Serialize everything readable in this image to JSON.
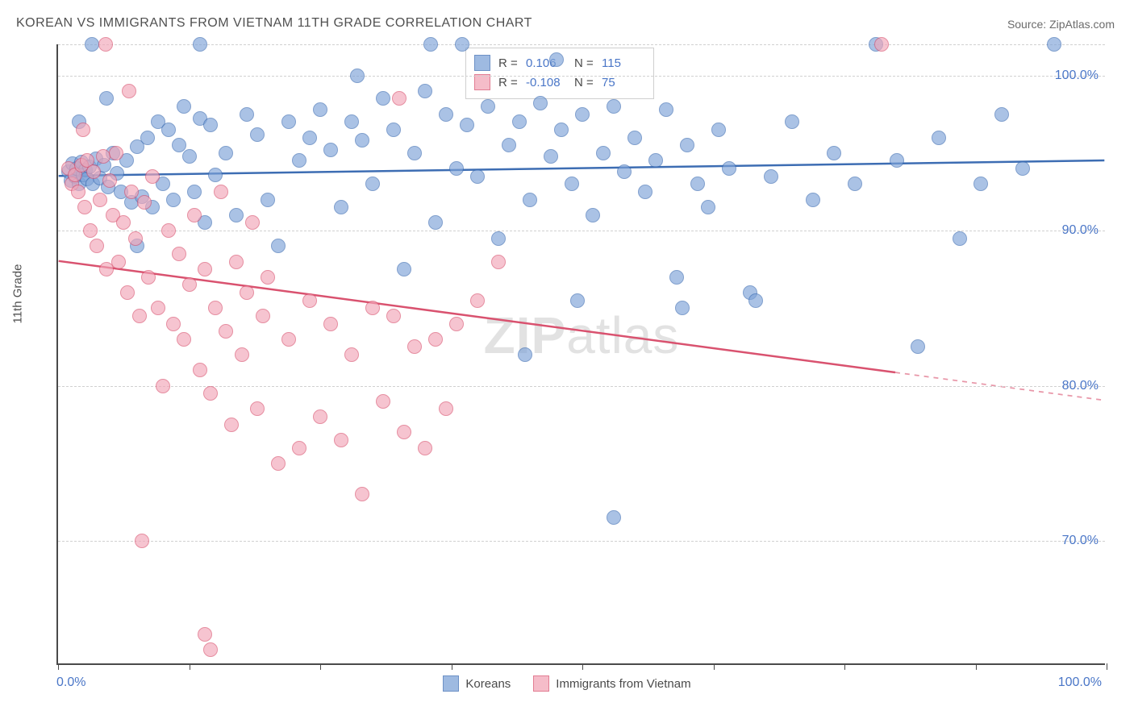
{
  "title": "KOREAN VS IMMIGRANTS FROM VIETNAM 11TH GRADE CORRELATION CHART",
  "source": "Source: ZipAtlas.com",
  "watermark_a": "ZIP",
  "watermark_b": "atlas",
  "yaxis_title": "11th Grade",
  "chart": {
    "type": "scatter",
    "background_color": "#ffffff",
    "grid_color": "#d0d0d0",
    "axis_color": "#4a4a4a",
    "tick_label_color": "#4a76c7",
    "xlim": [
      0,
      100
    ],
    "ylim": [
      62,
      102
    ],
    "yticks": [
      70,
      80,
      90,
      100
    ],
    "ytick_labels": [
      "70.0%",
      "80.0%",
      "90.0%",
      "100.0%"
    ],
    "xticks": [
      0,
      12.5,
      25,
      37.5,
      50,
      62.5,
      75,
      87.5,
      100
    ],
    "xlabel_min": "0.0%",
    "xlabel_max": "100.0%",
    "marker_radius": 9,
    "marker_border_width": 1.5,
    "marker_fill_opacity": 0.3,
    "trend_line_width": 2.5
  },
  "stats_legend": {
    "r_label": "R  =",
    "n_label": "N  =",
    "series": [
      {
        "r": "0.106",
        "n": "115"
      },
      {
        "r": "-0.108",
        "n": "75"
      }
    ]
  },
  "bottom_legend": {
    "items": [
      {
        "label": "Koreans"
      },
      {
        "label": "Immigrants from Vietnam"
      }
    ]
  },
  "series": [
    {
      "name": "Koreans",
      "color_fill": "#7ea3d8",
      "color_stroke": "#3d6db3",
      "trend": {
        "x1": 0,
        "y1": 93.5,
        "x2": 100,
        "y2": 94.5,
        "solid_to_x": 100
      },
      "points": [
        [
          1,
          93.8
        ],
        [
          1.2,
          93.2
        ],
        [
          1.4,
          94.3
        ],
        [
          1.6,
          93.5
        ],
        [
          1.8,
          94.0
        ],
        [
          2.0,
          93.0
        ],
        [
          2.2,
          94.4
        ],
        [
          2.4,
          93.6
        ],
        [
          2.6,
          93.9
        ],
        [
          2.8,
          93.3
        ],
        [
          3.0,
          94.1
        ],
        [
          3.3,
          93.0
        ],
        [
          3.6,
          94.6
        ],
        [
          4.0,
          93.4
        ],
        [
          4.4,
          94.2
        ],
        [
          4.8,
          92.8
        ],
        [
          5.2,
          95.0
        ],
        [
          5.6,
          93.7
        ],
        [
          6.0,
          92.5
        ],
        [
          6.5,
          94.5
        ],
        [
          7.0,
          91.8
        ],
        [
          7.5,
          95.4
        ],
        [
          8.0,
          92.2
        ],
        [
          8.5,
          96.0
        ],
        [
          9.0,
          91.5
        ],
        [
          9.5,
          97.0
        ],
        [
          10.0,
          93.0
        ],
        [
          10.5,
          96.5
        ],
        [
          11.0,
          92.0
        ],
        [
          11.5,
          95.5
        ],
        [
          12.0,
          98.0
        ],
        [
          12.5,
          94.8
        ],
        [
          13.0,
          92.5
        ],
        [
          13.5,
          97.2
        ],
        [
          14.0,
          90.5
        ],
        [
          14.5,
          96.8
        ],
        [
          15.0,
          93.6
        ],
        [
          16.0,
          95.0
        ],
        [
          17.0,
          91.0
        ],
        [
          18.0,
          97.5
        ],
        [
          19.0,
          96.2
        ],
        [
          20.0,
          92.0
        ],
        [
          21.0,
          89.0
        ],
        [
          22.0,
          97.0
        ],
        [
          23.0,
          94.5
        ],
        [
          24.0,
          96.0
        ],
        [
          25.0,
          97.8
        ],
        [
          26.0,
          95.2
        ],
        [
          27.0,
          91.5
        ],
        [
          28.0,
          97.0
        ],
        [
          29.0,
          95.8
        ],
        [
          30.0,
          93.0
        ],
        [
          31.0,
          98.5
        ],
        [
          32.0,
          96.5
        ],
        [
          33.0,
          87.5
        ],
        [
          34.0,
          95.0
        ],
        [
          35.0,
          99.0
        ],
        [
          36.0,
          90.5
        ],
        [
          37.0,
          97.5
        ],
        [
          38.0,
          94.0
        ],
        [
          39.0,
          96.8
        ],
        [
          40.0,
          93.5
        ],
        [
          41.0,
          98.0
        ],
        [
          42.0,
          89.5
        ],
        [
          43.0,
          95.5
        ],
        [
          44.0,
          97.0
        ],
        [
          45.0,
          92.0
        ],
        [
          46.0,
          98.2
        ],
        [
          47.0,
          94.8
        ],
        [
          48.0,
          96.5
        ],
        [
          49.0,
          93.0
        ],
        [
          50.0,
          97.5
        ],
        [
          51.0,
          91.0
        ],
        [
          52.0,
          95.0
        ],
        [
          53.0,
          98.0
        ],
        [
          54.0,
          93.8
        ],
        [
          55.0,
          96.0
        ],
        [
          56.0,
          92.5
        ],
        [
          57.0,
          94.5
        ],
        [
          58.0,
          97.8
        ],
        [
          59.0,
          87.0
        ],
        [
          60.0,
          95.5
        ],
        [
          61.0,
          93.0
        ],
        [
          62.0,
          91.5
        ],
        [
          63.0,
          96.5
        ],
        [
          64.0,
          94.0
        ],
        [
          66.0,
          86.0
        ],
        [
          68.0,
          93.5
        ],
        [
          70.0,
          97.0
        ],
        [
          72.0,
          92.0
        ],
        [
          74.0,
          95.0
        ],
        [
          76.0,
          93.0
        ],
        [
          78.0,
          102.0
        ],
        [
          80.0,
          94.5
        ],
        [
          82.0,
          82.5
        ],
        [
          84.0,
          96.0
        ],
        [
          86.0,
          89.5
        ],
        [
          88.0,
          93.0
        ],
        [
          90.0,
          97.5
        ],
        [
          92.0,
          94.0
        ],
        [
          95.0,
          102.0
        ],
        [
          53.0,
          71.5
        ],
        [
          44.5,
          82.0
        ],
        [
          59.5,
          85.0
        ],
        [
          66.5,
          85.5
        ],
        [
          49.5,
          85.5
        ],
        [
          35.5,
          102.0
        ],
        [
          28.5,
          100.0
        ],
        [
          13.5,
          102.0
        ],
        [
          7.5,
          89.0
        ],
        [
          2.0,
          97.0
        ],
        [
          3.2,
          102.0
        ],
        [
          4.6,
          98.5
        ],
        [
          38.5,
          102.0
        ],
        [
          47.5,
          101.0
        ]
      ]
    },
    {
      "name": "Immigrants from Vietnam",
      "color_fill": "#f2a6b8",
      "color_stroke": "#d9526f",
      "trend": {
        "x1": 0,
        "y1": 88.0,
        "x2": 100,
        "y2": 79.0,
        "solid_to_x": 80
      },
      "points": [
        [
          1.0,
          94.0
        ],
        [
          1.3,
          93.0
        ],
        [
          1.6,
          93.6
        ],
        [
          1.9,
          92.5
        ],
        [
          2.2,
          94.2
        ],
        [
          2.5,
          91.5
        ],
        [
          2.8,
          94.5
        ],
        [
          3.1,
          90.0
        ],
        [
          3.4,
          93.8
        ],
        [
          3.7,
          89.0
        ],
        [
          4.0,
          92.0
        ],
        [
          4.3,
          94.8
        ],
        [
          4.6,
          87.5
        ],
        [
          4.9,
          93.2
        ],
        [
          5.2,
          91.0
        ],
        [
          5.5,
          95.0
        ],
        [
          5.8,
          88.0
        ],
        [
          6.2,
          90.5
        ],
        [
          6.6,
          86.0
        ],
        [
          7.0,
          92.5
        ],
        [
          7.4,
          89.5
        ],
        [
          7.8,
          84.5
        ],
        [
          8.2,
          91.8
        ],
        [
          8.6,
          87.0
        ],
        [
          9.0,
          93.5
        ],
        [
          9.5,
          85.0
        ],
        [
          10.0,
          80.0
        ],
        [
          10.5,
          90.0
        ],
        [
          11.0,
          84.0
        ],
        [
          11.5,
          88.5
        ],
        [
          12.0,
          83.0
        ],
        [
          12.5,
          86.5
        ],
        [
          13.0,
          91.0
        ],
        [
          13.5,
          81.0
        ],
        [
          14.0,
          87.5
        ],
        [
          14.5,
          79.5
        ],
        [
          15.0,
          85.0
        ],
        [
          15.5,
          92.5
        ],
        [
          16.0,
          83.5
        ],
        [
          16.5,
          77.5
        ],
        [
          17.0,
          88.0
        ],
        [
          17.5,
          82.0
        ],
        [
          18.0,
          86.0
        ],
        [
          18.5,
          90.5
        ],
        [
          19.0,
          78.5
        ],
        [
          19.5,
          84.5
        ],
        [
          20.0,
          87.0
        ],
        [
          21.0,
          75.0
        ],
        [
          22.0,
          83.0
        ],
        [
          23.0,
          76.0
        ],
        [
          24.0,
          85.5
        ],
        [
          25.0,
          78.0
        ],
        [
          26.0,
          84.0
        ],
        [
          27.0,
          76.5
        ],
        [
          28.0,
          82.0
        ],
        [
          29.0,
          73.0
        ],
        [
          30.0,
          85.0
        ],
        [
          31.0,
          79.0
        ],
        [
          32.0,
          84.5
        ],
        [
          33.0,
          77.0
        ],
        [
          34.0,
          82.5
        ],
        [
          35.0,
          76.0
        ],
        [
          36.0,
          83.0
        ],
        [
          37.0,
          78.5
        ],
        [
          38.0,
          84.0
        ],
        [
          40.0,
          85.5
        ],
        [
          42.0,
          88.0
        ],
        [
          8.0,
          70.0
        ],
        [
          14.0,
          64.0
        ],
        [
          14.5,
          63.0
        ],
        [
          78.5,
          102.0
        ],
        [
          32.5,
          98.5
        ],
        [
          4.5,
          102.0
        ],
        [
          6.8,
          99.0
        ],
        [
          2.4,
          96.5
        ]
      ]
    }
  ]
}
